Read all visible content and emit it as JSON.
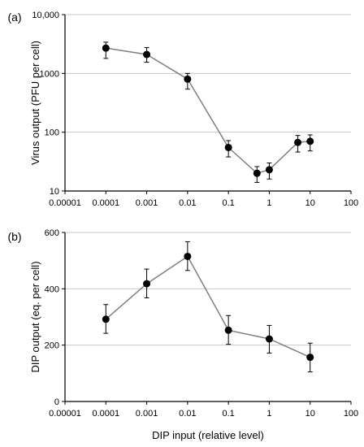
{
  "chart_data": [
    {
      "panel_label": "(a)",
      "type": "line",
      "x_scale": "log",
      "y_scale": "log",
      "xlim": [
        1e-05,
        100
      ],
      "ylim": [
        10,
        10000
      ],
      "x_ticks": [
        "0.00001",
        "0.0001",
        "0.001",
        "0.01",
        "0.1",
        "1",
        "10",
        "100"
      ],
      "y_ticks": [
        "10",
        "100",
        "1000",
        "10,000"
      ],
      "grid": "horizontal",
      "xlabel": "",
      "ylabel": "Virus output (PFU per cell)",
      "series": [
        {
          "x": [
            0.0001,
            0.001,
            0.01,
            0.1,
            0.5,
            1,
            5,
            10
          ],
          "y": [
            2700,
            2100,
            800,
            55,
            20,
            23,
            67,
            70
          ],
          "err_low": [
            1800,
            1550,
            540,
            38,
            14,
            16,
            46,
            48
          ],
          "err_high": [
            3400,
            2750,
            1000,
            72,
            26,
            30,
            88,
            90
          ]
        }
      ]
    },
    {
      "panel_label": "(b)",
      "type": "line",
      "x_scale": "log",
      "y_scale": "linear",
      "xlim": [
        1e-05,
        100
      ],
      "ylim": [
        0,
        600
      ],
      "x_ticks": [
        "0.00001",
        "0.0001",
        "0.001",
        "0.01",
        "0.1",
        "1",
        "10",
        "100"
      ],
      "y_ticks": [
        "0",
        "200",
        "400",
        "600"
      ],
      "grid": "horizontal",
      "xlabel": "DIP input (relative level)",
      "ylabel": "DIP output (eq. per cell)",
      "series": [
        {
          "x": [
            0.0001,
            0.001,
            0.01,
            0.1,
            1,
            10
          ],
          "y": [
            292,
            418,
            515,
            253,
            222,
            157
          ],
          "err_low": [
            242,
            368,
            465,
            203,
            172,
            105
          ],
          "err_high": [
            344,
            470,
            567,
            305,
            270,
            207
          ]
        }
      ]
    }
  ]
}
